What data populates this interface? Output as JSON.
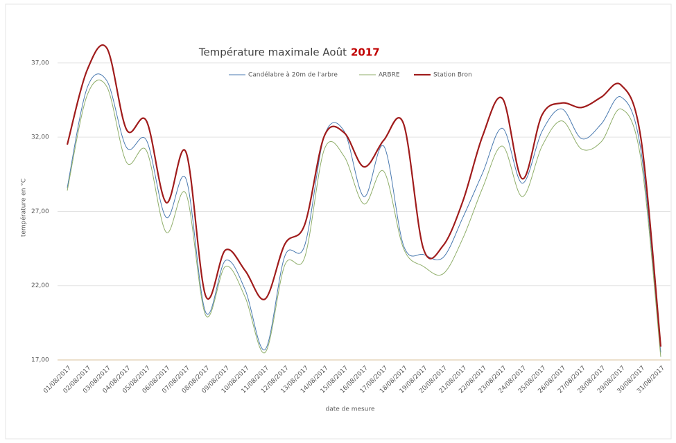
{
  "chart_data": {
    "type": "line",
    "title": "Température maximale Août",
    "title_emphasis": "2017",
    "x_label": "date de mesure",
    "y_label": "température en °C",
    "categories": [
      "01/08/2017",
      "02/08/2017",
      "03/08/2017",
      "04/08/2017",
      "05/08/2017",
      "06/08/2017",
      "07/08/2017",
      "08/08/2017",
      "09/08/2017",
      "10/08/2017",
      "11/08/2017",
      "12/08/2017",
      "13/08/2017",
      "14/08/2017",
      "15/08/2017",
      "16/08/2017",
      "17/08/2017",
      "18/08/2017",
      "19/08/2017",
      "20/08/2017",
      "21/08/2017",
      "22/08/2017",
      "23/08/2017",
      "24/08/2017",
      "25/08/2017",
      "26/08/2017",
      "27/08/2017",
      "28/08/2017",
      "29/08/2017",
      "30/08/2017",
      "31/08/2017"
    ],
    "series": [
      {
        "name": "Candélabre à 20m de l'arbre",
        "color": "#4a7ab0",
        "width": 1,
        "values": [
          28.6,
          35.3,
          35.8,
          31.3,
          31.8,
          26.6,
          29.2,
          20.2,
          23.7,
          21.7,
          17.7,
          24.0,
          24.7,
          32.1,
          32.4,
          28.0,
          31.4,
          24.7,
          24.1,
          23.9,
          26.6,
          29.6,
          32.6,
          28.9,
          32.4,
          33.9,
          31.9,
          32.9,
          34.7,
          31.1,
          17.5
        ]
      },
      {
        "name": "ARBRE",
        "color": "#8fae6a",
        "width": 1,
        "values": [
          28.4,
          34.8,
          35.4,
          30.3,
          31.1,
          25.6,
          28.2,
          20.0,
          23.3,
          21.2,
          17.5,
          23.4,
          23.9,
          31.2,
          30.7,
          27.5,
          29.7,
          24.5,
          23.3,
          22.8,
          25.2,
          28.6,
          31.4,
          28.0,
          31.4,
          33.1,
          31.2,
          31.7,
          33.9,
          30.5,
          17.2
        ]
      },
      {
        "name": "Station Bron",
        "color": "#a01c1c",
        "width": 2.2,
        "values": [
          31.5,
          36.5,
          38.0,
          32.5,
          33.1,
          27.6,
          31.0,
          21.3,
          24.4,
          23.0,
          21.1,
          24.8,
          26.1,
          32.1,
          32.3,
          30.0,
          31.8,
          32.9,
          24.5,
          24.7,
          27.7,
          32.1,
          34.6,
          29.2,
          33.5,
          34.3,
          34.0,
          34.7,
          35.5,
          31.9,
          17.9
        ]
      }
    ],
    "ylim": [
      17,
      39
    ],
    "yticks": [
      {
        "value": 17,
        "label": "17,00"
      },
      {
        "value": 22,
        "label": "22,00"
      },
      {
        "value": 27,
        "label": "27,00"
      },
      {
        "value": 32,
        "label": "32,00"
      },
      {
        "value": 37,
        "label": "37,00"
      }
    ],
    "grid": true
  }
}
